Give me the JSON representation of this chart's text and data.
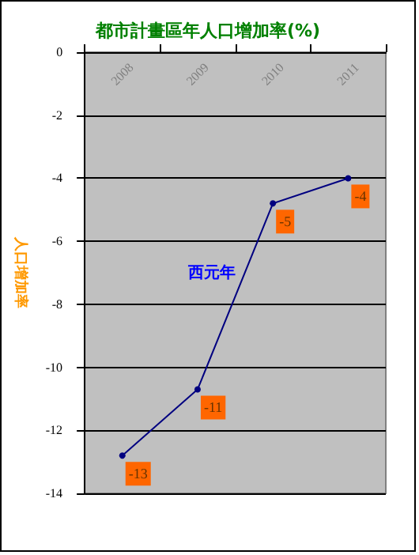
{
  "chart_data": {
    "type": "line",
    "title": "都市計畫區年人口增加率(%)",
    "ylabel": "人口增加率",
    "xlabel": "西元年",
    "categories": [
      "2008",
      "2009",
      "2010",
      "2011"
    ],
    "series": [
      {
        "color": "#000080",
        "values": [
          -12.8,
          -10.7,
          -4.8,
          -4.0
        ],
        "value_labels": [
          "-13",
          "-11",
          "-5",
          "-4"
        ]
      }
    ],
    "ylim": [
      -14,
      0
    ],
    "yticks": [
      -14,
      -12,
      -10,
      -8,
      -6,
      -4,
      -2,
      0
    ],
    "grid": "y",
    "marker": "circle",
    "line_style": "solid"
  }
}
